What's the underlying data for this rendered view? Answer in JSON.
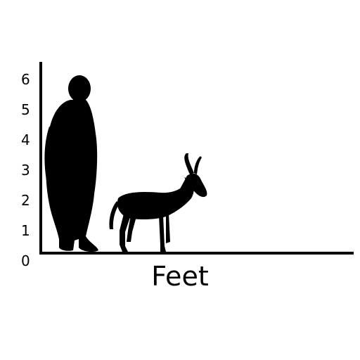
{
  "scale": {
    "unit_label": "Feet",
    "ticks": [
      "0",
      "1",
      "2",
      "3",
      "4",
      "5",
      "6"
    ]
  },
  "figures": [
    {
      "name": "human-silhouette",
      "height_ft": 5.8
    },
    {
      "name": "antelope-silhouette",
      "height_ft": 3.3
    }
  ],
  "colors": {
    "silhouette": "#000000",
    "axis": "#000000",
    "background": "#ffffff"
  }
}
